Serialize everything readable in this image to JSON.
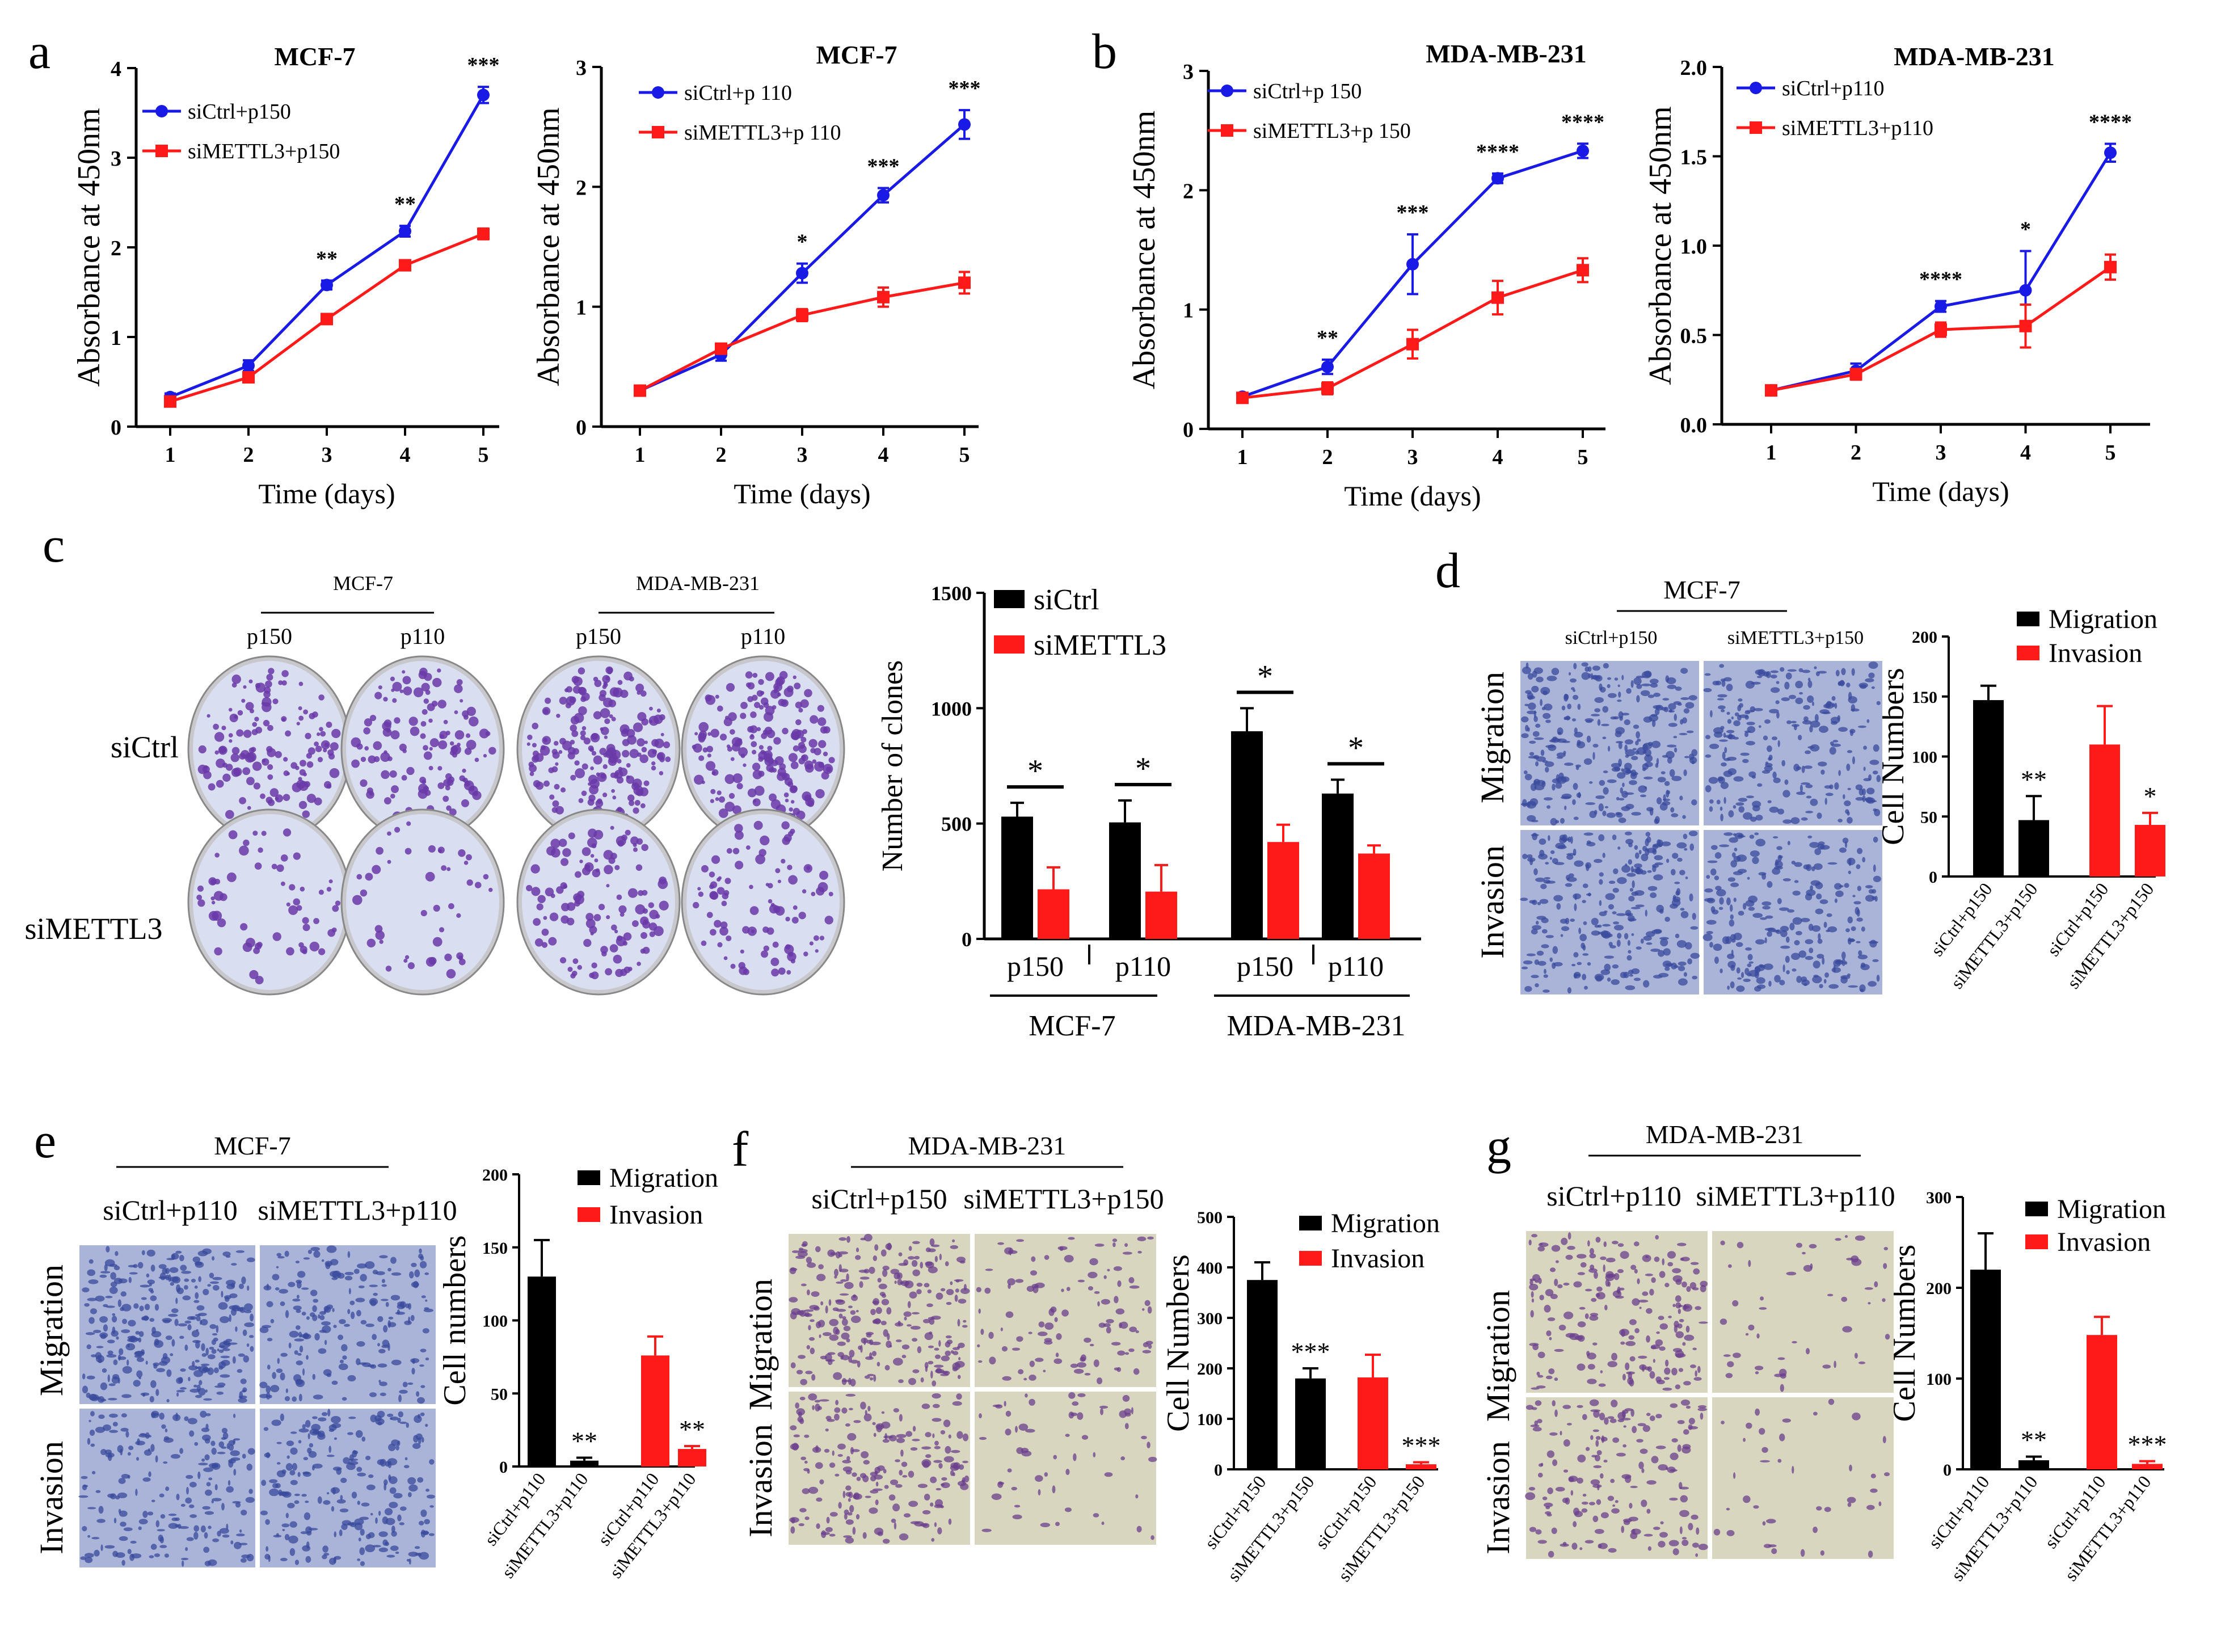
{
  "colors": {
    "blue": "#1a1ae6",
    "blue_light": "#5b5bf0",
    "red": "#ff1a1a",
    "black": "#000000",
    "stain_bg": "#d9dff0",
    "stain_purple": "#6a3aa8",
    "micro_blue_bg": "#a9b4d8",
    "micro_blue_cell": "#3a4a9c",
    "micro_yellow_bg": "#d9d6bf",
    "micro_yellow_cell": "#6a3f8c"
  },
  "panel_letters": [
    "a",
    "b",
    "c",
    "d",
    "e",
    "f",
    "g"
  ],
  "chart_data": [
    {
      "id": "a1",
      "type": "line",
      "title": "MCF-7",
      "xlabel": "Time (days)",
      "ylabel": "Absorbance at 450nm",
      "x": [
        1,
        2,
        3,
        4,
        5
      ],
      "xticks": [
        "1",
        "2",
        "3",
        "4",
        "5"
      ],
      "ylim": [
        0,
        4
      ],
      "yticks": [
        "0",
        "1",
        "2",
        "3",
        "4"
      ],
      "series": [
        {
          "name": "siCtrl+p150",
          "color": "blue",
          "values": [
            0.33,
            0.68,
            1.58,
            2.18,
            3.7
          ],
          "errors": [
            0.04,
            0.06,
            0.05,
            0.06,
            0.09
          ]
        },
        {
          "name": "siMETTL3+p150",
          "color": "red",
          "values": [
            0.28,
            0.55,
            1.2,
            1.8,
            2.15
          ],
          "errors": [
            0.03,
            0.05,
            0.05,
            0.05,
            0.06
          ]
        }
      ],
      "annotations": [
        "",
        "",
        "**",
        "**",
        "***"
      ]
    },
    {
      "id": "a2",
      "type": "line",
      "title": "MCF-7",
      "xlabel": "Time (days)",
      "ylabel": "Absorbance at 450nm",
      "x": [
        1,
        2,
        3,
        4,
        5
      ],
      "xticks": [
        "1",
        "2",
        "3",
        "4",
        "5"
      ],
      "ylim": [
        0,
        3
      ],
      "yticks": [
        "0",
        "1",
        "2",
        "3"
      ],
      "series": [
        {
          "name": "siCtrl+p 110",
          "color": "blue",
          "values": [
            0.3,
            0.6,
            1.28,
            1.93,
            2.52
          ],
          "errors": [
            0.03,
            0.05,
            0.08,
            0.06,
            0.12
          ]
        },
        {
          "name": "siMETTL3+p 110",
          "color": "red",
          "values": [
            0.3,
            0.65,
            0.93,
            1.08,
            1.2
          ],
          "errors": [
            0.03,
            0.04,
            0.05,
            0.08,
            0.09
          ]
        }
      ],
      "annotations": [
        "",
        "",
        "*",
        "***",
        "***"
      ]
    },
    {
      "id": "b1",
      "type": "line",
      "title": "MDA-MB-231",
      "xlabel": "Time (days)",
      "ylabel": "Absorbance at 450nm",
      "x": [
        1,
        2,
        3,
        4,
        5
      ],
      "xticks": [
        "1",
        "2",
        "3",
        "4",
        "5"
      ],
      "ylim": [
        0,
        3
      ],
      "yticks": [
        "0",
        "1",
        "2",
        "3"
      ],
      "series": [
        {
          "name": "siCtrl+p 150",
          "color": "blue",
          "values": [
            0.27,
            0.52,
            1.38,
            2.1,
            2.33
          ],
          "errors": [
            0.03,
            0.06,
            0.25,
            0.04,
            0.06
          ]
        },
        {
          "name": "siMETTL3+p 150",
          "color": "red",
          "values": [
            0.26,
            0.34,
            0.71,
            1.1,
            1.33
          ],
          "errors": [
            0.03,
            0.05,
            0.12,
            0.14,
            0.1
          ]
        }
      ],
      "annotations": [
        "",
        "**",
        "***",
        "****",
        "****"
      ]
    },
    {
      "id": "b2",
      "type": "line",
      "title": "MDA-MB-231",
      "xlabel": "Time (days)",
      "ylabel": "Absorbance at 450nm",
      "x": [
        1,
        2,
        3,
        4,
        5
      ],
      "xticks": [
        "1",
        "2",
        "3",
        "4",
        "5"
      ],
      "ylim": [
        0,
        2
      ],
      "yticks": [
        "0.0",
        "0.5",
        "1.0",
        "1.5",
        "2.0"
      ],
      "series": [
        {
          "name": "siCtrl+p110",
          "color": "blue",
          "values": [
            0.19,
            0.3,
            0.66,
            0.75,
            1.52
          ],
          "errors": [
            0.02,
            0.04,
            0.03,
            0.22,
            0.05
          ]
        },
        {
          "name": "siMETTL3+p110",
          "color": "red",
          "values": [
            0.19,
            0.28,
            0.53,
            0.55,
            0.88
          ],
          "errors": [
            0.02,
            0.03,
            0.04,
            0.12,
            0.07
          ]
        }
      ],
      "annotations": [
        "",
        "",
        "****",
        "*",
        "****"
      ]
    },
    {
      "id": "c",
      "type": "bar",
      "ylabel": "Number of clones",
      "ylim": [
        0,
        1500
      ],
      "yticks": [
        "0",
        "500",
        "1000",
        "1500"
      ],
      "categories": [
        "p150",
        "p110",
        "p150",
        "p110"
      ],
      "groups": [
        "MCF-7",
        "MDA-MB-231"
      ],
      "series": [
        {
          "name": "siCtrl",
          "color": "black",
          "values": [
            530,
            505,
            900,
            630
          ],
          "errors": [
            60,
            95,
            100,
            60
          ]
        },
        {
          "name": "siMETTL3",
          "color": "red",
          "values": [
            215,
            205,
            420,
            370
          ],
          "errors": [
            95,
            115,
            75,
            35
          ]
        }
      ],
      "annotations": [
        "*",
        "*",
        "*",
        "*"
      ]
    },
    {
      "id": "d",
      "type": "bar",
      "ylabel": "Cell Numbers",
      "ylim": [
        0,
        200
      ],
      "yticks": [
        "0",
        "50",
        "100",
        "150",
        "200"
      ],
      "categories": [
        "siCtrl+p150",
        "siMETTL3+p150",
        "siCtrl+p150",
        "siMETTL3+p150"
      ],
      "values": [
        147,
        47,
        110,
        43
      ],
      "errors": [
        12,
        20,
        32,
        10
      ],
      "bar_colors": [
        "black",
        "black",
        "red",
        "red"
      ],
      "legend": [
        {
          "name": "Migration",
          "color": "black"
        },
        {
          "name": "Invasion",
          "color": "red"
        }
      ],
      "annotations": [
        "",
        "**",
        "",
        "*"
      ]
    },
    {
      "id": "e",
      "type": "bar",
      "ylabel": "Cell numbers",
      "ylim": [
        0,
        200
      ],
      "yticks": [
        "0",
        "50",
        "100",
        "150",
        "200"
      ],
      "categories": [
        "siCtrl+p110",
        "siMETTL3+p110",
        "siCtrl+p110",
        "siMETTL3+p110"
      ],
      "values": [
        130,
        4,
        76,
        12
      ],
      "errors": [
        25,
        2,
        13,
        2
      ],
      "bar_colors": [
        "black",
        "black",
        "red",
        "red"
      ],
      "legend": [
        {
          "name": "Migration",
          "color": "black"
        },
        {
          "name": "Invasion",
          "color": "red"
        }
      ],
      "annotations": [
        "",
        "**",
        "",
        "**"
      ]
    },
    {
      "id": "f",
      "type": "bar",
      "ylabel": "Cell Numbers",
      "ylim": [
        0,
        500
      ],
      "yticks": [
        "0",
        "100",
        "200",
        "300",
        "400",
        "500"
      ],
      "categories": [
        "siCtrl+p150",
        "siMETTL3+p150",
        "siCtrl+p150",
        "siMETTL3+p150"
      ],
      "values": [
        375,
        180,
        182,
        10
      ],
      "errors": [
        35,
        20,
        45,
        4
      ],
      "bar_colors": [
        "black",
        "black",
        "red",
        "red"
      ],
      "legend": [
        {
          "name": "Migration",
          "color": "black"
        },
        {
          "name": "Invasion",
          "color": "red"
        }
      ],
      "annotations": [
        "",
        "***",
        "",
        "***"
      ]
    },
    {
      "id": "g",
      "type": "bar",
      "ylabel": "Cell Numbers",
      "ylim": [
        0,
        300
      ],
      "yticks": [
        "0",
        "100",
        "200",
        "300"
      ],
      "categories": [
        "siCtrl+p110",
        "siMETTL3+p110",
        "siCtrl+p110",
        "siMETTL3+p110"
      ],
      "values": [
        220,
        10,
        148,
        6
      ],
      "errors": [
        40,
        4,
        20,
        3
      ],
      "bar_colors": [
        "black",
        "black",
        "red",
        "red"
      ],
      "legend": [
        {
          "name": "Migration",
          "color": "black"
        },
        {
          "name": "Invasion",
          "color": "red"
        }
      ],
      "annotations": [
        "",
        "**",
        "",
        "***"
      ]
    }
  ],
  "images": {
    "c": {
      "groups": [
        "MCF-7",
        "MDA-MB-231"
      ],
      "columns": [
        "p150",
        "p110",
        "p150",
        "p110"
      ],
      "rows": [
        "siCtrl",
        "siMETTL3"
      ]
    },
    "d": {
      "title": "MCF-7",
      "columns": [
        "siCtrl+p150",
        "siMETTL3+p150"
      ],
      "rows": [
        "Migration",
        "Invasion"
      ]
    },
    "e": {
      "title": "MCF-7",
      "columns": [
        "siCtrl+p110",
        "siMETTL3+p110"
      ],
      "rows": [
        "Migration",
        "Invasion"
      ]
    },
    "f": {
      "title": "MDA-MB-231",
      "columns": [
        "siCtrl+p150",
        "siMETTL3+p150"
      ],
      "rows": [
        "Migration",
        "Invasion"
      ]
    },
    "g": {
      "title": "MDA-MB-231",
      "columns": [
        "siCtrl+p110",
        "siMETTL3+p110"
      ],
      "rows": [
        "Migration",
        "Invasion"
      ]
    }
  }
}
